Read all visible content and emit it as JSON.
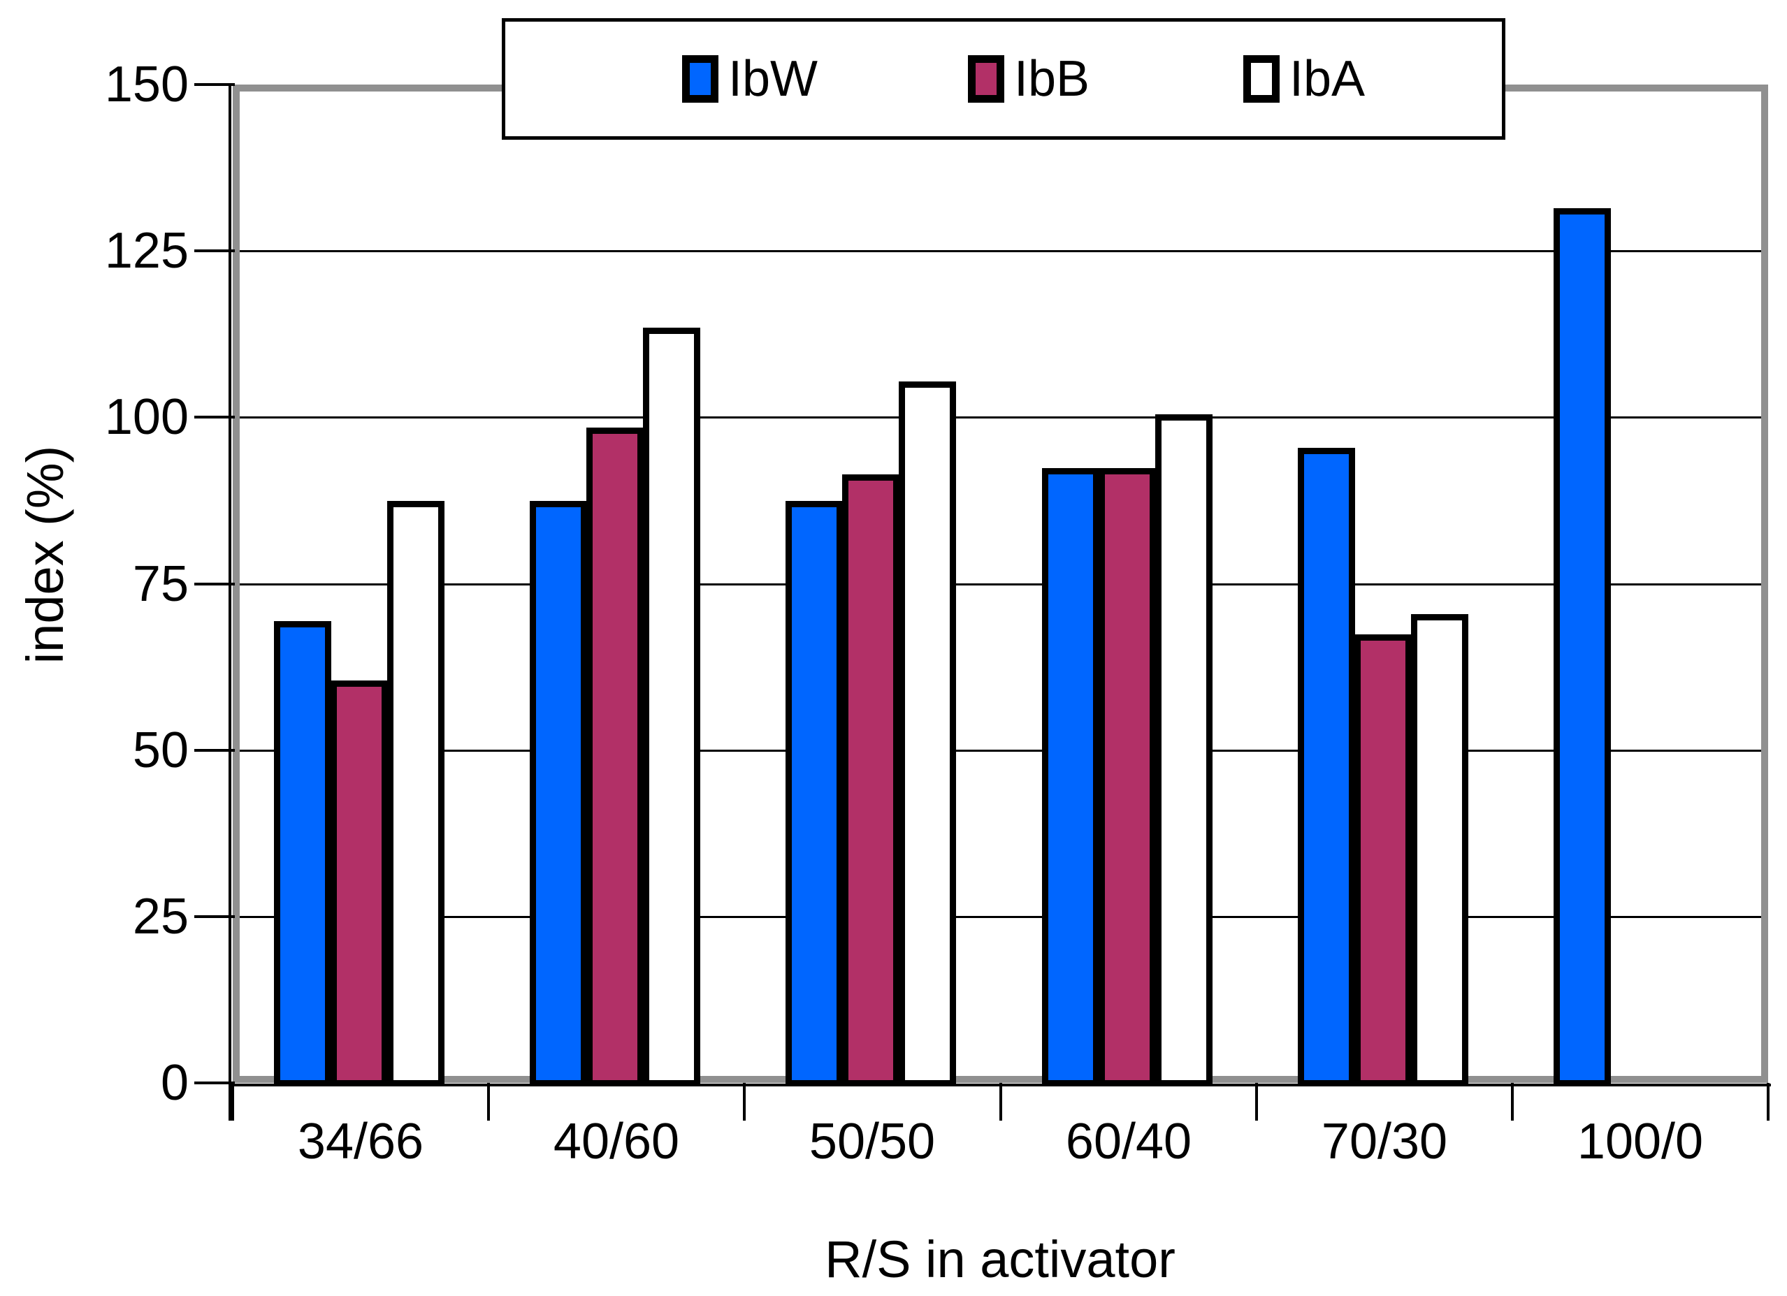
{
  "chart_data": {
    "type": "bar",
    "title": "",
    "xlabel": "R/S in activator",
    "ylabel": "index (%)",
    "categories": [
      "34/66",
      "40/60",
      "50/50",
      "60/40",
      "70/30",
      "100/0"
    ],
    "series": [
      {
        "name": "IbW",
        "color": "#0066FF",
        "values": [
          69,
          87,
          87,
          92,
          95,
          131
        ]
      },
      {
        "name": "IbB",
        "color": "#B23067",
        "values": [
          60,
          98,
          91,
          92,
          67,
          null
        ]
      },
      {
        "name": "IbA",
        "color": "#FFFFFF",
        "values": [
          87,
          113,
          105,
          100,
          70,
          null
        ]
      }
    ],
    "ylim": [
      0,
      150
    ],
    "yticks": [
      0,
      25,
      50,
      75,
      100,
      125,
      150
    ],
    "grid": true,
    "legend_position": "top"
  },
  "colors": {
    "plot_frame": "#909090",
    "gridline": "#000000",
    "bar_border": "#000000",
    "background": "#FFFFFF"
  }
}
